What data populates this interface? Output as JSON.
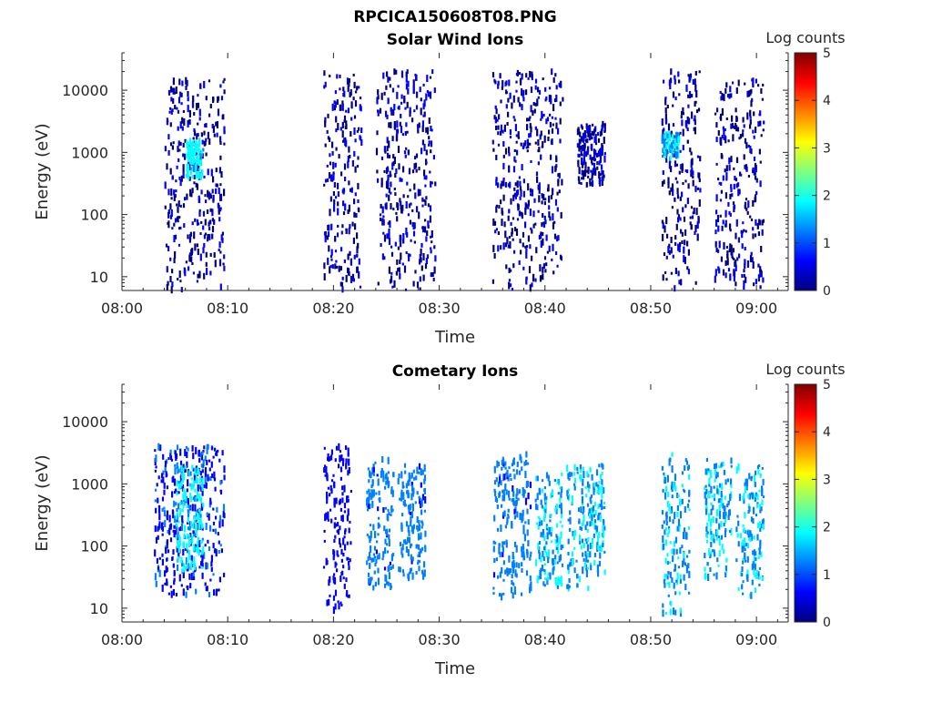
{
  "figure_title": "RPCICA150608T08.PNG",
  "colormap": [
    "#00007f",
    "#0000ff",
    "#007fff",
    "#00ffff",
    "#7fff7f",
    "#ffff00",
    "#ff7f00",
    "#ff0000",
    "#7f0000"
  ],
  "chart_data": [
    {
      "type": "heatmap",
      "title": "Solar Wind Ions",
      "xlabel": "Time",
      "ylabel": "Energy (eV)",
      "y_scale": "log",
      "xlim": [
        "08:00",
        "09:03"
      ],
      "ylim": [
        6,
        40000
      ],
      "x_ticks": [
        "08:00",
        "08:10",
        "08:20",
        "08:30",
        "08:40",
        "08:50",
        "09:00"
      ],
      "y_ticks": [
        "10",
        "100",
        "1000",
        "10000"
      ],
      "colorbar": {
        "label": "Log counts",
        "ticks": [
          "0",
          "1",
          "2",
          "3",
          "4",
          "5"
        ],
        "range": [
          0,
          5
        ]
      },
      "bursts": [
        {
          "t_start": "08:04",
          "t_end": "08:09",
          "e_min": 6,
          "e_max": 15000,
          "log_counts": 0.3
        },
        {
          "t_start": "08:06",
          "t_end": "08:07",
          "e_min": 400,
          "e_max": 1500,
          "log_counts": 1.8
        },
        {
          "t_start": "08:19",
          "t_end": "08:22",
          "e_min": 6,
          "e_max": 20000,
          "log_counts": 0.3
        },
        {
          "t_start": "08:24",
          "t_end": "08:29",
          "e_min": 6,
          "e_max": 20000,
          "log_counts": 0.3
        },
        {
          "t_start": "08:35",
          "t_end": "08:41",
          "e_min": 6,
          "e_max": 20000,
          "log_counts": 0.3
        },
        {
          "t_start": "08:43",
          "t_end": "08:45",
          "e_min": 300,
          "e_max": 3000,
          "log_counts": 0.3
        },
        {
          "t_start": "08:51",
          "t_end": "08:54",
          "e_min": 6,
          "e_max": 20000,
          "log_counts": 0.3
        },
        {
          "t_start": "08:51",
          "t_end": "08:52",
          "e_min": 800,
          "e_max": 2000,
          "log_counts": 1.5
        },
        {
          "t_start": "08:56",
          "t_end": "09:00",
          "e_min": 6,
          "e_max": 15000,
          "log_counts": 0.3
        }
      ]
    },
    {
      "type": "heatmap",
      "title": "Cometary Ions",
      "xlabel": "Time",
      "ylabel": "Energy (eV)",
      "y_scale": "log",
      "xlim": [
        "08:00",
        "09:03"
      ],
      "ylim": [
        6,
        40000
      ],
      "x_ticks": [
        "08:00",
        "08:10",
        "08:20",
        "08:30",
        "08:40",
        "08:50",
        "09:00"
      ],
      "y_ticks": [
        "10",
        "100",
        "1000",
        "10000"
      ],
      "colorbar": {
        "label": "Log counts",
        "ticks": [
          "0",
          "1",
          "2",
          "3",
          "4",
          "5"
        ],
        "range": [
          0,
          5
        ]
      },
      "bursts": [
        {
          "t_start": "08:03",
          "t_end": "08:09",
          "e_min": 15,
          "e_max": 4000,
          "log_counts": 0.8
        },
        {
          "t_start": "08:05",
          "t_end": "08:07",
          "e_min": 40,
          "e_max": 2000,
          "log_counts": 1.8
        },
        {
          "t_start": "08:19",
          "t_end": "08:21",
          "e_min": 8,
          "e_max": 4000,
          "log_counts": 0.6
        },
        {
          "t_start": "08:23",
          "t_end": "08:25",
          "e_min": 20,
          "e_max": 2500,
          "log_counts": 1.2
        },
        {
          "t_start": "08:26",
          "t_end": "08:28",
          "e_min": 30,
          "e_max": 2000,
          "log_counts": 1.2
        },
        {
          "t_start": "08:35",
          "t_end": "08:38",
          "e_min": 15,
          "e_max": 3000,
          "log_counts": 1.2
        },
        {
          "t_start": "08:39",
          "t_end": "08:41",
          "e_min": 20,
          "e_max": 1500,
          "log_counts": 1.5
        },
        {
          "t_start": "08:42",
          "t_end": "08:45",
          "e_min": 20,
          "e_max": 2000,
          "log_counts": 1.5
        },
        {
          "t_start": "08:51",
          "t_end": "08:53",
          "e_min": 8,
          "e_max": 3000,
          "log_counts": 1.4
        },
        {
          "t_start": "08:55",
          "t_end": "08:57",
          "e_min": 30,
          "e_max": 2500,
          "log_counts": 1.5
        },
        {
          "t_start": "08:58",
          "t_end": "09:00",
          "e_min": 15,
          "e_max": 2000,
          "log_counts": 1.5
        }
      ]
    }
  ]
}
